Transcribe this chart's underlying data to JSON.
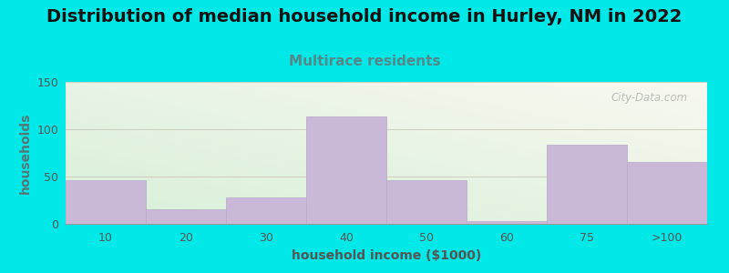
{
  "title": "Distribution of median household income in Hurley, NM in 2022",
  "subtitle": "Multirace residents",
  "xlabel": "household income ($1000)",
  "ylabel": "households",
  "categories": [
    "10",
    "20",
    "30",
    "40",
    "50",
    "60",
    "75",
    ">100"
  ],
  "values": [
    46,
    15,
    28,
    113,
    46,
    3,
    84,
    65
  ],
  "bar_color": "#c9b8d8",
  "bar_edgecolor": "#b8a8cc",
  "background_outer": "#00e8e8",
  "background_inner_topleft": "#d8f0d8",
  "background_inner_topright": "#f0f0e8",
  "background_inner_bottomleft": "#e8f5e0",
  "background_inner_bottomright": "#f8f8f0",
  "ylim": [
    0,
    150
  ],
  "yticks": [
    0,
    50,
    100,
    150
  ],
  "grid_color": "#ccccbb",
  "title_fontsize": 14,
  "subtitle_fontsize": 11,
  "subtitle_color": "#558888",
  "axis_label_fontsize": 10,
  "tick_label_fontsize": 9,
  "watermark": "City-Data.com",
  "bar_width": 1.0
}
